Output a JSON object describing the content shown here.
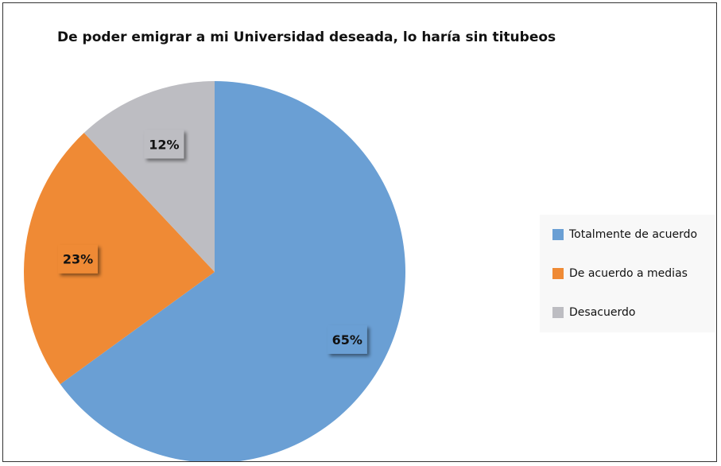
{
  "chart_data": {
    "type": "pie",
    "title": "De poder emigrar a mi Universidad deseada, lo haría sin titubeos",
    "legend_position": "right",
    "slices": [
      {
        "name": "Totalmente de acuerdo",
        "value": 65,
        "label": "65%",
        "color": "#6a9fd4"
      },
      {
        "name": "De acuerdo a medias",
        "value": 23,
        "label": "23%",
        "color": "#ef8a35"
      },
      {
        "name": "Desacuerdo",
        "value": 12,
        "label": "12%",
        "color": "#bdbdc2"
      }
    ]
  }
}
